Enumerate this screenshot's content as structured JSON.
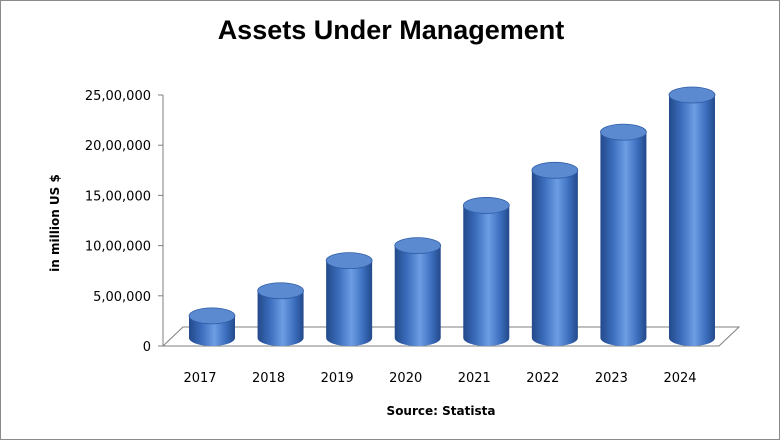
{
  "chart_data": {
    "type": "bar",
    "title": "Assets Under Management",
    "xlabel": "",
    "ylabel": "in million US $",
    "categories": [
      "2017",
      "2018",
      "2019",
      "2020",
      "2021",
      "2022",
      "2023",
      "2024"
    ],
    "values": [
      300000,
      550000,
      850000,
      1000000,
      1400000,
      1750000,
      2130000,
      2500000
    ],
    "ylim": [
      0,
      2500000
    ],
    "yticks": [
      "0",
      "5,00,000",
      "10,00,000",
      "15,00,000",
      "20,00,000",
      "25,00,000"
    ],
    "bar_style": "3d-cylinder",
    "grid": false,
    "legend": "none",
    "source": "Source: Statista",
    "colors": {
      "bar_body": "#3c6fbf",
      "bar_highlight": "#6d9de3",
      "bar_shadow": "#23498a",
      "bar_top": "#5b8ad0",
      "floor": "#ffffff",
      "axis": "#7f7f7f"
    }
  }
}
